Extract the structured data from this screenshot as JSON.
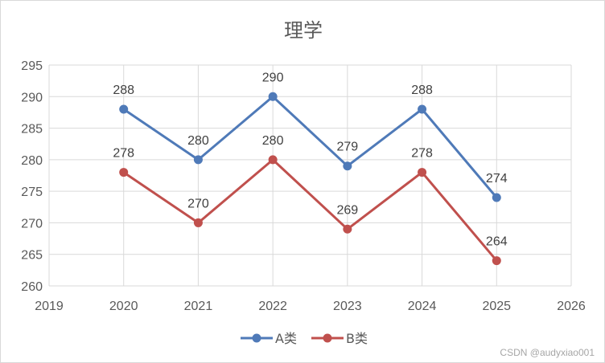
{
  "chart_data": {
    "type": "line",
    "title": "理学",
    "xlabel": "",
    "ylabel": "",
    "x": [
      2020,
      2021,
      2022,
      2023,
      2024,
      2025
    ],
    "xlim": [
      2019,
      2026
    ],
    "xticks": [
      "2019",
      "2020",
      "2021",
      "2022",
      "2023",
      "2024",
      "2025",
      "2026"
    ],
    "ylim": [
      260,
      295
    ],
    "yticks": [
      "260",
      "265",
      "270",
      "275",
      "280",
      "285",
      "290",
      "295"
    ],
    "grid": true,
    "legend": "bottom",
    "series": [
      {
        "name": "A类",
        "color": "#4f7ab8",
        "values": [
          288,
          280,
          290,
          279,
          288,
          274
        ],
        "labels": [
          "288",
          "280",
          "290",
          "279",
          "288",
          "274"
        ]
      },
      {
        "name": "B类",
        "color": "#c0504d",
        "values": [
          278,
          270,
          280,
          269,
          278,
          264
        ],
        "labels": [
          "278",
          "270",
          "280",
          "269",
          "278",
          "264"
        ]
      }
    ]
  },
  "watermark": "CSDN @audyxiao001"
}
